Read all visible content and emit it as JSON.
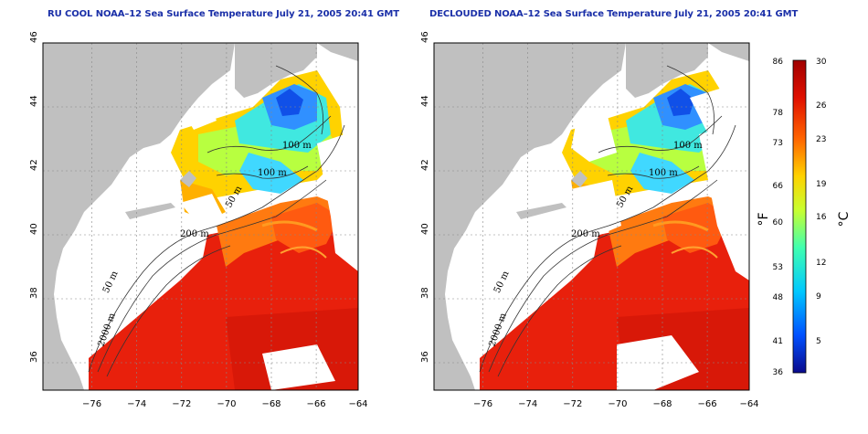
{
  "panels": [
    {
      "title": "RU COOL NOAA–12 Sea Surface Temperature July 21, 2005 20:41 GMT",
      "contour_labels": [
        "100 m",
        "100 m",
        "50 m",
        "200 m",
        "50 m",
        "2000 m"
      ]
    },
    {
      "title": "DECLOUDED NOAA–12 Sea Surface Temperature July 21, 2005 20:41 GMT",
      "contour_labels": [
        "100 m",
        "100 m",
        "50 m",
        "200 m",
        "50 m",
        "2000 m"
      ]
    }
  ],
  "axes": {
    "lat_ticks": [
      "46",
      "44",
      "42",
      "40",
      "38",
      "36"
    ],
    "lon_ticks": [
      "−76",
      "−74",
      "−72",
      "−70",
      "−68",
      "−66",
      "−64"
    ],
    "grid": "dotted"
  },
  "colorbar": {
    "fahrenheit_unit": "°F",
    "celsius_unit": "°C",
    "fahrenheit_ticks": [
      "86",
      "78",
      "73",
      "66",
      "60",
      "53",
      "48",
      "41",
      "36"
    ],
    "celsius_ticks": [
      "30",
      "26",
      "23",
      "19",
      "16",
      "12",
      "9",
      "5"
    ],
    "colors": [
      "#0a0a8c",
      "#0050ff",
      "#00c8ff",
      "#40ffb0",
      "#c8ff30",
      "#ffd200",
      "#ff6400",
      "#e01000",
      "#a00000"
    ]
  },
  "colors": {
    "land": "#c0c0c0",
    "cloud": "#ffffff",
    "title": "#1a2fa8"
  }
}
